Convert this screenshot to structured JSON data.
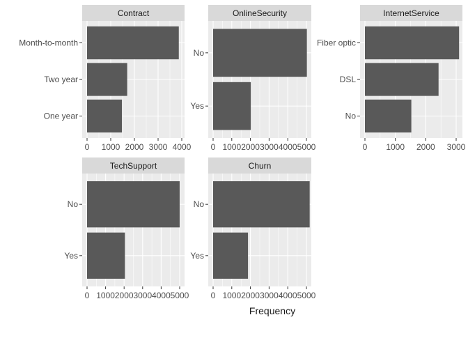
{
  "colors": {
    "panel_bg": "#EBEBEB",
    "strip_bg": "#D9D9D9",
    "bar": "#595959",
    "grid": "#FFFFFF",
    "text": "#4D4D4D",
    "title_text": "#1A1A1A"
  },
  "chart_data": [
    {
      "type": "bar",
      "orientation": "horizontal",
      "facet": "Contract",
      "categories": [
        "Month-to-month",
        "Two year",
        "One year"
      ],
      "values": [
        3875,
        1695,
        1473
      ],
      "xlim": [
        0,
        4000
      ],
      "xticks": [
        0,
        1000,
        2000,
        3000,
        4000
      ],
      "xtick_labels": [
        "0",
        "1000",
        "2000",
        "3000",
        "4000"
      ]
    },
    {
      "type": "bar",
      "orientation": "horizontal",
      "facet": "OnlineSecurity",
      "categories": [
        "No",
        "Yes"
      ],
      "values": [
        5024,
        2019
      ],
      "xlim": [
        0,
        5000
      ],
      "xticks": [
        0,
        1000,
        2000,
        3000,
        4000,
        5000
      ],
      "xtick_labels": [
        "0",
        "1000",
        "2000",
        "3000",
        "4000",
        "5000"
      ]
    },
    {
      "type": "bar",
      "orientation": "horizontal",
      "facet": "InternetService",
      "categories": [
        "Fiber optic",
        "DSL",
        "No"
      ],
      "values": [
        3096,
        2421,
        1526
      ],
      "xlim": [
        0,
        3000
      ],
      "xticks": [
        0,
        1000,
        2000,
        3000
      ],
      "xtick_labels": [
        "0",
        "1000",
        "2000",
        "3000"
      ]
    },
    {
      "type": "bar",
      "orientation": "horizontal",
      "facet": "TechSupport",
      "categories": [
        "No",
        "Yes"
      ],
      "values": [
        4999,
        2044
      ],
      "xlim": [
        0,
        5000
      ],
      "xticks": [
        0,
        1000,
        2000,
        3000,
        4000,
        5000
      ],
      "xtick_labels": [
        "0",
        "1000",
        "2000",
        "3000",
        "4000",
        "5000"
      ]
    },
    {
      "type": "bar",
      "orientation": "horizontal",
      "facet": "Churn",
      "categories": [
        "No",
        "Yes"
      ],
      "values": [
        5174,
        1869
      ],
      "xlim": [
        0,
        5000
      ],
      "xticks": [
        0,
        1000,
        2000,
        3000,
        4000,
        5000
      ],
      "xtick_labels": [
        "0",
        "1000",
        "2000",
        "3000",
        "4000",
        "5000"
      ]
    }
  ],
  "xlabel": "Frequency",
  "ylabel": "",
  "grid": true,
  "legend": "none"
}
